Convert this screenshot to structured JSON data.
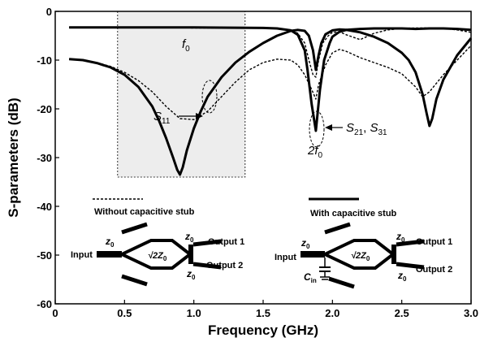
{
  "chart_data": {
    "type": "line",
    "title": "",
    "xlabel": "Frequency (GHz)",
    "ylabel": "S-parameters (dB)",
    "xlim": [
      0,
      3.0
    ],
    "ylim": [
      -60,
      0
    ],
    "xticks": [
      "0",
      "0.5",
      "1.0",
      "1.5",
      "2.0",
      "2.5",
      "3.0"
    ],
    "yticks": [
      "0",
      "-10",
      "-20",
      "-30",
      "-40",
      "-50",
      "-60"
    ],
    "grid": false,
    "highlight_region": {
      "x": [
        0.45,
        1.37
      ],
      "y": [
        -34,
        0
      ]
    },
    "series": [
      {
        "name": "Without capacitive stub",
        "parameter": "S21, S31",
        "style": "dashed",
        "x": [
          0.1,
          0.5,
          1.0,
          1.5,
          1.6,
          1.7,
          1.75,
          1.8,
          1.83,
          1.86,
          1.88,
          1.9,
          1.93,
          1.97,
          2.0,
          2.05,
          2.1,
          2.2,
          2.3,
          2.4,
          2.5,
          2.6,
          2.7,
          2.8,
          2.9,
          3.0
        ],
        "values": [
          -3.3,
          -3.3,
          -3.4,
          -3.4,
          -3.5,
          -3.8,
          -4.5,
          -6.5,
          -10,
          -13,
          -13.5,
          -10,
          -6.5,
          -5,
          -4.3,
          -4.2,
          -4.8,
          -5.8,
          -4.5,
          -3.8,
          -3.5,
          -3.4,
          -3.4,
          -3.5,
          -3.8,
          -4.3
        ]
      },
      {
        "name": "Without capacitive stub",
        "parameter": "S11",
        "style": "dashed",
        "x": [
          0.1,
          0.2,
          0.3,
          0.4,
          0.5,
          0.6,
          0.7,
          0.8,
          0.9,
          1.0,
          1.1,
          1.2,
          1.3,
          1.4,
          1.5,
          1.6,
          1.7,
          1.75,
          1.8,
          1.85,
          1.88,
          1.9,
          1.95,
          2.0,
          2.05,
          2.1,
          2.2,
          2.3,
          2.4,
          2.5,
          2.6,
          2.65,
          2.7,
          2.8,
          2.9,
          3.0
        ],
        "values": [
          -9.8,
          -10,
          -10.5,
          -11.3,
          -12.5,
          -14.2,
          -16.5,
          -19.5,
          -22,
          -22.2,
          -20.5,
          -17.5,
          -14.5,
          -12,
          -10.5,
          -9.8,
          -10,
          -11,
          -13,
          -16,
          -18,
          -15,
          -11,
          -8.5,
          -7.8,
          -8.2,
          -9.5,
          -10.5,
          -11.5,
          -12.8,
          -15.5,
          -17.5,
          -16.5,
          -13,
          -10,
          -7
        ]
      },
      {
        "name": "With capacitive stub",
        "parameter": "S21, S31",
        "style": "solid",
        "x": [
          0.1,
          0.5,
          1.0,
          1.5,
          1.6,
          1.7,
          1.75,
          1.8,
          1.82,
          1.85,
          1.88,
          1.91,
          1.94,
          1.98,
          2.0,
          2.05,
          2.1,
          2.2,
          2.3,
          2.4,
          2.5,
          2.6,
          2.7,
          2.8,
          2.9,
          3.0
        ],
        "values": [
          -3.3,
          -3.3,
          -3.3,
          -3.4,
          -3.5,
          -3.9,
          -4.8,
          -8,
          -12,
          -19,
          -24.5,
          -16,
          -10,
          -6.5,
          -5.2,
          -4.2,
          -3.8,
          -3.6,
          -3.5,
          -3.5,
          -3.5,
          -3.6,
          -3.5,
          -3.5,
          -3.6,
          -3.8
        ]
      },
      {
        "name": "With capacitive stub",
        "parameter": "S11",
        "style": "solid",
        "x": [
          0.1,
          0.2,
          0.3,
          0.4,
          0.5,
          0.6,
          0.7,
          0.75,
          0.8,
          0.85,
          0.88,
          0.9,
          0.92,
          0.95,
          1.0,
          1.05,
          1.1,
          1.2,
          1.3,
          1.4,
          1.5,
          1.6,
          1.7,
          1.75,
          1.8,
          1.83,
          1.86,
          1.88,
          1.9,
          1.92,
          1.95,
          2.0,
          2.05,
          2.1,
          2.2,
          2.3,
          2.4,
          2.5,
          2.55,
          2.6,
          2.65,
          2.68,
          2.7,
          2.72,
          2.75,
          2.8,
          2.9,
          3.0
        ],
        "values": [
          -9.8,
          -10,
          -10.6,
          -11.5,
          -13,
          -15.5,
          -19.5,
          -22.5,
          -26,
          -30,
          -32.5,
          -33.5,
          -32,
          -28.5,
          -24,
          -20.5,
          -17.5,
          -13.5,
          -10.5,
          -8.3,
          -6.5,
          -5,
          -4,
          -3.8,
          -4,
          -5,
          -8,
          -12,
          -9,
          -6.5,
          -4.7,
          -3.9,
          -3.7,
          -3.8,
          -4.3,
          -5.2,
          -6.5,
          -8.5,
          -10,
          -12.5,
          -17,
          -21,
          -23.5,
          -22,
          -18,
          -14,
          -9,
          -5.5
        ]
      }
    ],
    "annotations": {
      "f0": {
        "main": "f",
        "sub": "0"
      },
      "s11": {
        "main": "S",
        "sub": "11"
      },
      "two_f0": {
        "main": "2f",
        "sub": "0"
      },
      "s21_s31": {
        "part1": "S",
        "sub1": "21",
        "sep": ", ",
        "part2": "S",
        "sub2": "31"
      }
    },
    "legend": {
      "dashed_label": "Without capacitive stub",
      "solid_label": "With capacitive stub"
    },
    "circuits": {
      "left": {
        "input": "Input",
        "output1": "Output 1",
        "output2": "Output 2",
        "z": "z",
        "z_sub": "0",
        "impedance": "√2Z",
        "impedance_sub": "0"
      },
      "right": {
        "input": "Input",
        "output1": "Output 1",
        "output2": "Output 2",
        "z": "z",
        "z_sub": "0",
        "impedance": "√2Z",
        "impedance_sub": "0",
        "cap": "C",
        "cap_sub": "in"
      }
    }
  }
}
